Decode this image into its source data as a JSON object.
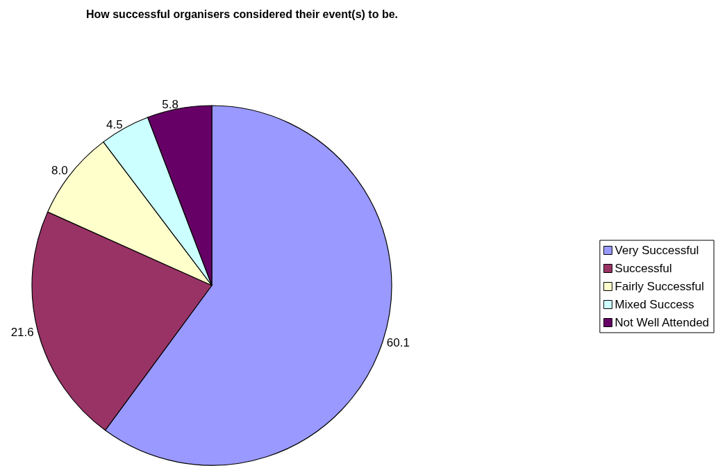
{
  "chart_data": {
    "type": "pie",
    "title": "How successful organisers considered their event(s) to be.",
    "categories": [
      "Very Successful",
      "Successful",
      "Fairly Successful",
      "Mixed Success",
      "Not Well Attended"
    ],
    "values": [
      60.1,
      21.6,
      8.0,
      4.5,
      5.8
    ],
    "colors": [
      "#9999ff",
      "#993366",
      "#ffffcc",
      "#ccffff",
      "#660066"
    ],
    "value_labels": [
      "60.1",
      "21.6",
      "8.0",
      "4.5",
      "5.8"
    ],
    "legend": "right"
  }
}
